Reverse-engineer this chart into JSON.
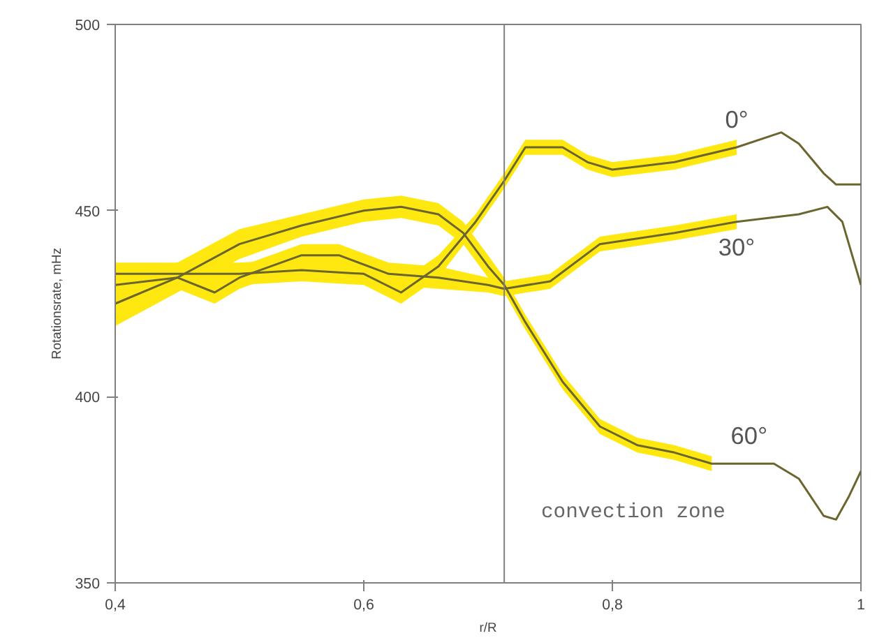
{
  "chart_data": {
    "type": "line",
    "xlabel": "r/R",
    "ylabel": "Rotationsrate, mHz",
    "xlim": [
      0.4,
      1.0
    ],
    "ylim": [
      350,
      500
    ],
    "xticks": [
      {
        "value": 0.4,
        "label": "0,4"
      },
      {
        "value": 0.6,
        "label": "0,6"
      },
      {
        "value": 0.8,
        "label": "0,8"
      },
      {
        "value": 1.0,
        "label": "1"
      }
    ],
    "yticks": [
      350,
      400,
      450,
      500
    ],
    "grid": false,
    "series": [
      {
        "name": "0°",
        "color": "#6b6530",
        "x": [
          0.4,
          0.45,
          0.5,
          0.55,
          0.6,
          0.63,
          0.66,
          0.69,
          0.713,
          0.73,
          0.76,
          0.78,
          0.8,
          0.85,
          0.9,
          0.936,
          0.95,
          0.97,
          0.98,
          1.0
        ],
        "values": [
          433,
          433,
          433,
          434,
          433,
          428,
          435,
          447,
          458,
          467,
          467,
          463,
          461,
          463,
          467,
          471,
          468,
          460,
          457,
          457
        ],
        "lower": [
          430,
          430,
          430,
          431,
          430,
          425,
          432,
          445,
          456,
          465,
          465,
          461,
          459,
          461,
          465,
          null,
          null,
          null,
          null,
          null
        ],
        "upper": [
          436,
          436,
          436,
          437,
          436,
          431,
          438,
          449,
          460,
          469,
          469,
          465,
          463,
          465,
          469,
          null,
          null,
          null,
          null,
          null
        ]
      },
      {
        "name": "30°",
        "color": "#6b6530",
        "x": [
          0.4,
          0.45,
          0.48,
          0.5,
          0.55,
          0.58,
          0.62,
          0.66,
          0.7,
          0.713,
          0.75,
          0.79,
          0.85,
          0.9,
          0.95,
          0.973,
          0.985,
          1.0
        ],
        "values": [
          430,
          432,
          428,
          432,
          438,
          438,
          433,
          432,
          430,
          429,
          431,
          441,
          444,
          447,
          449,
          451,
          447,
          430
        ],
        "lower": [
          427,
          429,
          425,
          429,
          435,
          435,
          430,
          429,
          428,
          427,
          429,
          439,
          442,
          445,
          null,
          null,
          null,
          null
        ],
        "upper": [
          433,
          435,
          431,
          435,
          441,
          441,
          436,
          435,
          432,
          431,
          433,
          443,
          446,
          449,
          null,
          null,
          null,
          null
        ]
      },
      {
        "name": "60°",
        "color": "#6b6530",
        "x": [
          0.4,
          0.45,
          0.5,
          0.55,
          0.6,
          0.63,
          0.66,
          0.68,
          0.7,
          0.713,
          0.73,
          0.76,
          0.79,
          0.82,
          0.85,
          0.88,
          0.91,
          0.93,
          0.95,
          0.97,
          0.98,
          0.99,
          1.0
        ],
        "values": [
          425,
          432,
          441,
          446,
          450,
          451,
          449,
          444,
          435,
          430,
          420,
          404,
          392,
          387,
          385,
          382,
          382,
          382,
          378,
          368,
          367,
          373,
          380
        ],
        "lower": [
          419,
          428,
          437,
          443,
          447,
          448,
          446,
          441,
          432,
          428,
          418,
          402,
          390,
          385,
          383,
          380,
          null,
          null,
          null,
          null,
          null,
          null,
          null
        ],
        "upper": [
          431,
          436,
          445,
          449,
          453,
          454,
          452,
          447,
          438,
          432,
          422,
          406,
          394,
          389,
          387,
          384,
          null,
          null,
          null,
          null,
          null,
          null,
          null
        ]
      }
    ],
    "ref_lines": [
      {
        "axis": "x",
        "value": 0.713,
        "color": "#808080"
      }
    ],
    "annotations": [
      "convection zone"
    ]
  }
}
